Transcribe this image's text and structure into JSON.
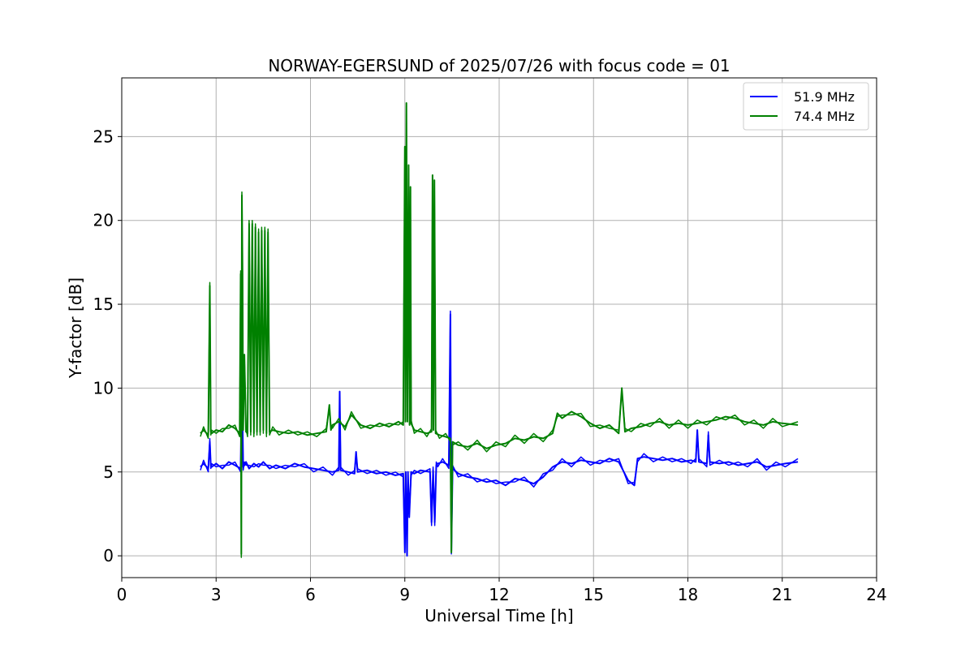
{
  "chart_data": {
    "type": "line",
    "title": "NORWAY-EGERSUND of 2025/07/26 with focus code = 01",
    "xlabel": "Universal Time [h]",
    "ylabel": "Y-factor [dB]",
    "xlim": [
      0,
      24
    ],
    "ylim": [
      -1.3,
      28.5
    ],
    "xticks": [
      0,
      3,
      6,
      9,
      12,
      15,
      18,
      21,
      24
    ],
    "yticks": [
      0,
      5,
      10,
      15,
      20,
      25
    ],
    "grid": true,
    "legend_position": "top-right",
    "series": [
      {
        "name": "51.9 MHz",
        "color": "#0000ff",
        "x": [
          2.5,
          2.6,
          2.75,
          2.8,
          2.83,
          2.86,
          3.0,
          3.2,
          3.4,
          3.6,
          3.78,
          3.82,
          3.86,
          3.9,
          3.95,
          4.05,
          4.2,
          4.35,
          4.5,
          4.7,
          4.9,
          5.2,
          5.5,
          5.8,
          6.1,
          6.4,
          6.7,
          6.9,
          6.93,
          6.96,
          7.2,
          7.4,
          7.45,
          7.5,
          7.8,
          8.1,
          8.4,
          8.7,
          8.95,
          9.0,
          9.03,
          9.07,
          9.1,
          9.14,
          9.2,
          9.3,
          9.5,
          9.8,
          9.85,
          9.9,
          9.95,
          10.0,
          10.05,
          10.2,
          10.4,
          10.45,
          10.48,
          10.52,
          10.7,
          11.0,
          11.3,
          11.6,
          11.9,
          12.2,
          12.5,
          12.8,
          13.1,
          13.4,
          13.7,
          14.0,
          14.3,
          14.6,
          14.9,
          15.2,
          15.5,
          15.8,
          16.1,
          16.3,
          16.4,
          16.6,
          16.9,
          17.2,
          17.5,
          17.8,
          18.1,
          18.25,
          18.3,
          18.35,
          18.6,
          18.65,
          18.7,
          19.0,
          19.3,
          19.6,
          19.9,
          20.2,
          20.5,
          20.8,
          21.1,
          21.5
        ],
        "values": [
          5.3,
          5.5,
          5.2,
          6.8,
          5.4,
          5.3,
          5.5,
          5.2,
          5.6,
          5.4,
          5.2,
          11.0,
          5.3,
          5.4,
          5.6,
          5.2,
          5.5,
          5.3,
          5.6,
          5.2,
          5.4,
          5.2,
          5.5,
          5.3,
          5.2,
          5.1,
          5.0,
          5.1,
          9.8,
          5.1,
          5.0,
          4.9,
          6.2,
          5.0,
          5.1,
          4.9,
          5.0,
          4.8,
          4.9,
          0.2,
          5.0,
          0.0,
          5.0,
          2.3,
          5.0,
          4.9,
          5.1,
          5.0,
          2.0,
          5.1,
          2.0,
          5.4,
          5.5,
          5.6,
          5.4,
          14.4,
          0.3,
          5.2,
          4.9,
          4.7,
          4.6,
          4.4,
          4.5,
          4.2,
          4.6,
          4.5,
          4.3,
          4.7,
          5.3,
          5.6,
          5.5,
          5.7,
          5.6,
          5.5,
          5.8,
          5.6,
          4.5,
          4.2,
          5.8,
          5.9,
          5.8,
          5.7,
          5.8,
          5.6,
          5.7,
          5.6,
          7.5,
          5.6,
          5.5,
          7.2,
          5.6,
          5.5,
          5.6,
          5.4,
          5.5,
          5.6,
          5.3,
          5.4,
          5.5,
          5.6
        ]
      },
      {
        "name": "74.4 MHz",
        "color": "#008000",
        "x": [
          2.5,
          2.6,
          2.75,
          2.8,
          2.83,
          2.86,
          3.0,
          3.2,
          3.4,
          3.6,
          3.75,
          3.78,
          3.8,
          3.82,
          3.84,
          3.86,
          3.9,
          3.95,
          4.0,
          4.05,
          4.1,
          4.15,
          4.2,
          4.25,
          4.3,
          4.35,
          4.4,
          4.45,
          4.5,
          4.55,
          4.6,
          4.65,
          4.7,
          4.8,
          5.0,
          5.3,
          5.6,
          5.9,
          6.2,
          6.5,
          6.6,
          6.65,
          6.7,
          6.9,
          7.1,
          7.3,
          7.6,
          7.9,
          8.2,
          8.5,
          8.8,
          8.95,
          9.0,
          9.02,
          9.05,
          9.08,
          9.12,
          9.15,
          9.18,
          9.2,
          9.3,
          9.5,
          9.7,
          9.85,
          9.88,
          9.91,
          9.94,
          9.98,
          10.1,
          10.3,
          10.45,
          10.48,
          10.52,
          10.7,
          11.0,
          11.3,
          11.6,
          11.9,
          12.2,
          12.5,
          12.8,
          13.1,
          13.4,
          13.7,
          13.85,
          14.0,
          14.3,
          14.6,
          14.9,
          15.2,
          15.5,
          15.8,
          15.9,
          16.0,
          16.2,
          16.5,
          16.8,
          17.1,
          17.4,
          17.7,
          18.0,
          18.3,
          18.6,
          18.9,
          19.2,
          19.5,
          19.8,
          20.1,
          20.4,
          20.7,
          21.0,
          21.5
        ],
        "values": [
          7.3,
          7.5,
          7.2,
          16.1,
          7.4,
          7.3,
          7.5,
          7.4,
          7.8,
          7.6,
          7.3,
          16.8,
          0.1,
          21.5,
          17.0,
          7.5,
          12.0,
          7.4,
          7.3,
          19.8,
          7.4,
          19.8,
          7.3,
          19.6,
          7.4,
          19.3,
          7.4,
          19.4,
          7.5,
          19.4,
          7.3,
          19.3,
          7.4,
          7.5,
          7.4,
          7.3,
          7.4,
          7.2,
          7.3,
          7.4,
          9.0,
          7.5,
          7.8,
          8.0,
          7.7,
          8.4,
          7.8,
          7.6,
          7.9,
          7.7,
          8.0,
          7.8,
          24.4,
          8.0,
          27.0,
          8.0,
          23.3,
          7.8,
          22.0,
          7.9,
          7.5,
          7.4,
          7.3,
          7.4,
          22.7,
          7.5,
          22.4,
          7.3,
          7.2,
          7.1,
          7.0,
          0.2,
          6.8,
          6.6,
          6.5,
          6.7,
          6.4,
          6.6,
          6.7,
          7.0,
          6.9,
          7.1,
          7.0,
          7.3,
          8.5,
          8.2,
          8.6,
          8.3,
          7.9,
          7.6,
          7.8,
          7.3,
          10.0,
          7.4,
          7.6,
          7.7,
          7.9,
          8.0,
          7.8,
          7.9,
          7.8,
          7.9,
          8.0,
          8.1,
          8.3,
          8.2,
          8.0,
          7.9,
          7.8,
          8.0,
          7.9,
          7.8
        ]
      }
    ]
  }
}
